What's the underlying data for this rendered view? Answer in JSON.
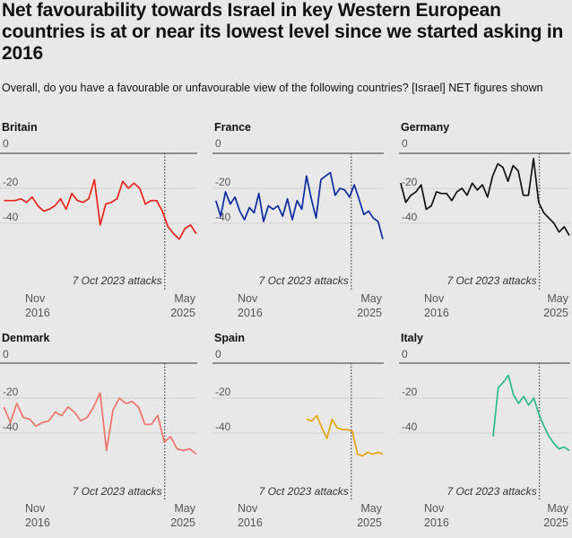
{
  "title": "Net favourability towards Israel in key Western European countries is at or near its lowest level since we started asking in 2016",
  "subtitle": "Overall, do you have a favourable or unfavourable view of the following countries? [Israel] NET figures shown",
  "colors": {
    "Britain": "#e8241a",
    "France": "#0b2a9c",
    "Germany": "#111111",
    "Denmark": "#ee7368",
    "Spain": "#e6a511",
    "Italy": "#2cb98b",
    "zero_line": "#555555",
    "grid": "#cfcfcf",
    "attack_line": "#555555"
  },
  "chart_data": [
    {
      "type": "line",
      "title": "Britain",
      "ylim": [
        -60,
        0
      ],
      "yticks": [
        "0",
        "-20",
        "-40"
      ],
      "xlabels": [
        [
          "Nov",
          "2016"
        ],
        [
          "May",
          "2025"
        ]
      ],
      "annotation": "7 Oct 2023 attacks",
      "series": [
        {
          "values": [
            -27,
            -27,
            -27,
            -26,
            -28,
            -25,
            -30,
            -33,
            -32,
            -30,
            -26,
            -32,
            -23,
            -27,
            -28,
            -26,
            -15,
            -41,
            -29,
            -28,
            -26,
            -16,
            -20,
            -17,
            -20,
            -29,
            -27,
            -27,
            -33,
            -42,
            -46,
            -49,
            -43,
            -41,
            -46
          ]
        }
      ]
    },
    {
      "type": "line",
      "title": "France",
      "ylim": [
        -60,
        0
      ],
      "yticks": [
        "0",
        "-20",
        "-40"
      ],
      "xlabels": [
        [
          "Nov",
          "2016"
        ],
        [
          "May",
          "2025"
        ]
      ],
      "annotation": "7 Oct 2023 attacks",
      "series": [
        {
          "values": [
            -27,
            -36,
            -22,
            -29,
            -25,
            -33,
            -38,
            -31,
            -34,
            -23,
            -39,
            -30,
            -32,
            -30,
            -36,
            -26,
            -38,
            -27,
            -32,
            -13,
            -26,
            -37,
            -15,
            -13,
            -11,
            -24,
            -20,
            -21,
            -25,
            -18,
            -26,
            -35,
            -33,
            -37,
            -39,
            -49
          ]
        }
      ]
    },
    {
      "type": "line",
      "title": "Germany",
      "ylim": [
        -60,
        0
      ],
      "yticks": [
        "0",
        "-20",
        "-40"
      ],
      "xlabels": [
        [
          "Nov",
          "2016"
        ],
        [
          "May",
          "2025"
        ]
      ],
      "annotation": "7 Oct 2023 attacks",
      "series": [
        {
          "values": [
            -17,
            -28,
            -24,
            -22,
            -18,
            -32,
            -30,
            -22,
            -23,
            -23,
            -27,
            -22,
            -20,
            -24,
            -17,
            -21,
            -18,
            -25,
            -13,
            -6,
            -8,
            -16,
            -7,
            -10,
            -24,
            -24,
            -3,
            -28,
            -34,
            -37,
            -40,
            -45,
            -42,
            -47
          ]
        }
      ]
    },
    {
      "type": "line",
      "title": "Denmark",
      "ylim": [
        -60,
        0
      ],
      "yticks": [
        "0",
        "-20",
        "-40"
      ],
      "xlabels": [
        [
          "Nov",
          "2016"
        ],
        [
          "May",
          "2025"
        ]
      ],
      "annotation": "7 Oct 2023 attacks",
      "series": [
        {
          "values": [
            -25,
            -34,
            -23,
            -31,
            -32,
            -36,
            -34,
            -33,
            -28,
            -30,
            -25,
            -28,
            -33,
            -31,
            -25,
            -17,
            -50,
            -27,
            -20,
            -23,
            -22,
            -25,
            -35,
            -35,
            -30,
            -45,
            -42,
            -49,
            -50,
            -49,
            -52
          ]
        }
      ]
    },
    {
      "type": "line",
      "title": "Spain",
      "ylim": [
        -60,
        0
      ],
      "yticks": [
        "0",
        "-20",
        "-40"
      ],
      "xlabels": [
        [
          "Nov",
          "2016"
        ],
        [
          "May",
          "2025"
        ]
      ],
      "annotation": "7 Oct 2023 attacks",
      "series": [
        {
          "values": [
            -32,
            -33,
            -30,
            -37,
            -43,
            -32,
            -37,
            -38,
            -38,
            -39,
            -52,
            -53,
            -51,
            -52,
            -51,
            -52
          ]
        }
      ]
    },
    {
      "type": "line",
      "title": "Italy",
      "ylim": [
        -60,
        0
      ],
      "yticks": [
        "0",
        "-20",
        "-40"
      ],
      "xlabels": [
        [
          "Nov",
          "2016"
        ],
        [
          "May",
          "2025"
        ]
      ],
      "annotation": "7 Oct 2023 attacks",
      "series": [
        {
          "values": [
            -42,
            -14,
            -11,
            -7,
            -18,
            -23,
            -19,
            -24,
            -20,
            -29,
            -36,
            -42,
            -46,
            -49,
            -48,
            -50
          ]
        }
      ]
    }
  ]
}
